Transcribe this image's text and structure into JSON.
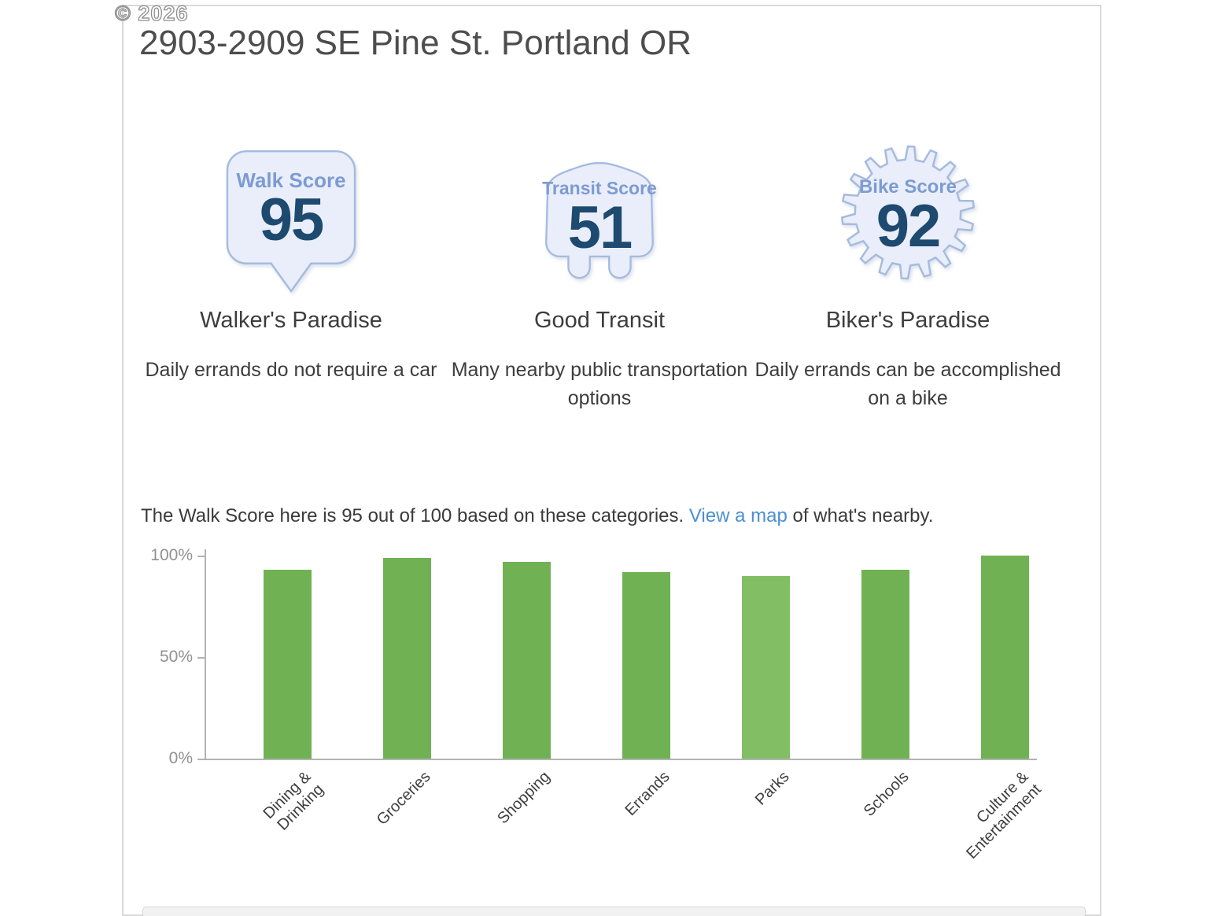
{
  "watermark": "© 2026",
  "page_title": "2903-2909 SE Pine St. Portland OR",
  "scores": [
    {
      "label": "Walk Score",
      "value": "95",
      "badge": "speech-bubble",
      "title": "Walker's Paradise",
      "description": "Daily errands do not require a car"
    },
    {
      "label": "Transit Score",
      "value": "51",
      "badge": "bus",
      "title": "Good Transit",
      "description": "Many nearby public transportation options"
    },
    {
      "label": "Bike Score",
      "value": "92",
      "badge": "gear",
      "title": "Biker's Paradise",
      "description": "Daily errands can be accomplished on a bike"
    }
  ],
  "summary": {
    "text_before_link": "The Walk Score here is 95 out of 100 based on these categories. ",
    "link_text": "View a map",
    "text_after_link": " of what's nearby."
  },
  "chart_data": {
    "type": "bar",
    "title": "Walk Score categories",
    "categories": [
      "Dining &\nDrinking",
      "Groceries",
      "Shopping",
      "Errands",
      "Parks",
      "Schools",
      "Culture &\nEntertainment"
    ],
    "values": [
      93,
      99,
      97,
      92,
      90,
      93,
      100
    ],
    "xlabel": "",
    "ylabel": "",
    "ytick_labels": [
      "0%",
      "50%",
      "100%"
    ],
    "ylim": [
      0,
      100
    ],
    "grid": false,
    "legend": "none",
    "bar_color": "#70b154",
    "bar_color_light": "#82be64",
    "light_bar_indexes": [
      4
    ]
  },
  "colors": {
    "badge_fill": "#e9eefa",
    "badge_border": "#a5bbdf",
    "badge_label": "#7d9bd2",
    "badge_value": "#1d4a6e",
    "link": "#4a90d2",
    "axis": "#b3b3b3",
    "tick_label": "#919191",
    "container_border": "#d9d9d9"
  }
}
